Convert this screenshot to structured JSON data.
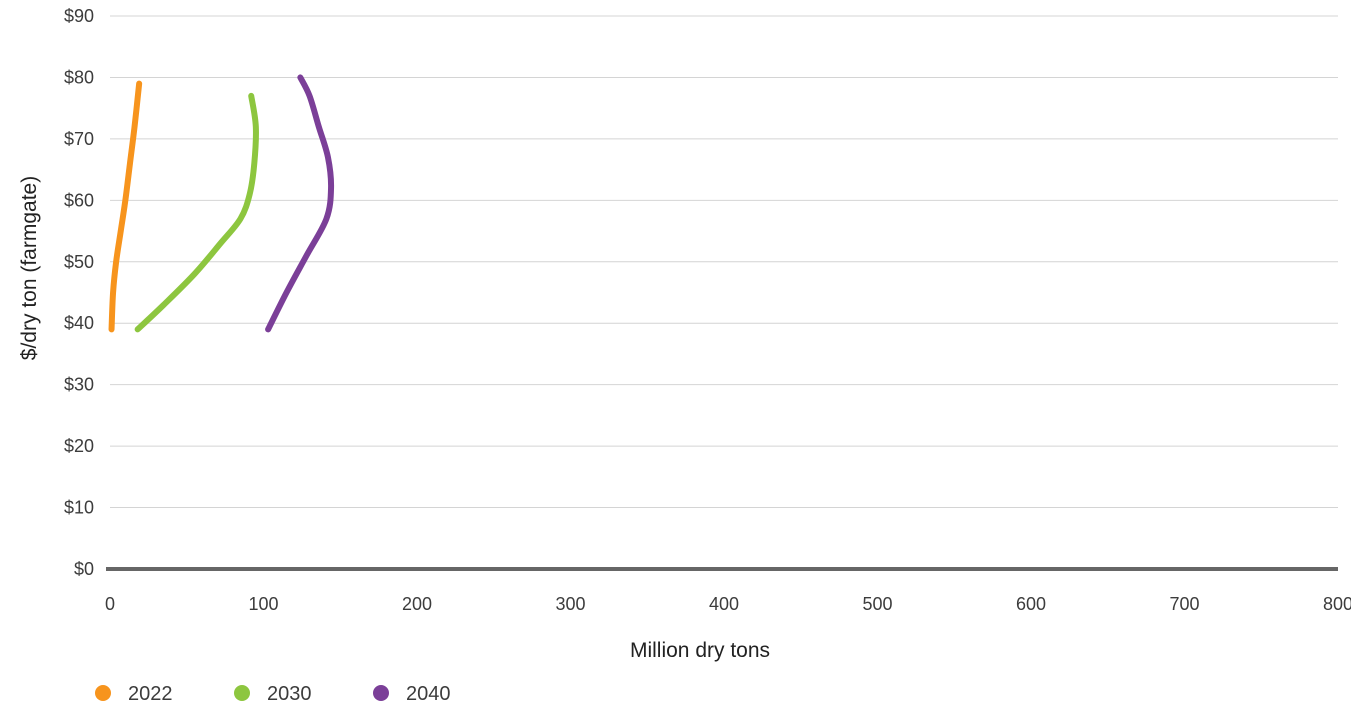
{
  "chart_data": {
    "type": "line",
    "title": "",
    "xlabel": "Million dry tons",
    "ylabel": "$/dry ton (farmgate)",
    "xlim": [
      0,
      800
    ],
    "ylim": [
      0,
      90
    ],
    "x_ticks": [
      "0",
      "100",
      "200",
      "300",
      "400",
      "500",
      "600",
      "700",
      "800"
    ],
    "y_ticks": [
      "$0",
      "$10",
      "$20",
      "$30",
      "$40",
      "$50",
      "$60",
      "$70",
      "$80",
      "$90"
    ],
    "grid": true,
    "legend_position": "bottom-left",
    "series": [
      {
        "name": "2022",
        "color": "#f7941d",
        "points": [
          [
            1,
            39
          ],
          [
            2,
            45
          ],
          [
            4,
            50
          ],
          [
            7,
            55
          ],
          [
            10,
            60
          ],
          [
            13,
            66
          ],
          [
            16,
            72
          ],
          [
            19,
            79
          ]
        ]
      },
      {
        "name": "2030",
        "color": "#8dc63f",
        "points": [
          [
            18,
            39
          ],
          [
            35,
            43
          ],
          [
            55,
            48
          ],
          [
            72,
            53
          ],
          [
            85,
            57
          ],
          [
            91,
            61
          ],
          [
            94,
            66
          ],
          [
            95,
            72
          ],
          [
            92,
            77
          ]
        ]
      },
      {
        "name": "2040",
        "color": "#7b3f98",
        "points": [
          [
            103,
            39
          ],
          [
            115,
            45
          ],
          [
            128,
            51
          ],
          [
            141,
            57
          ],
          [
            144,
            62
          ],
          [
            142,
            67
          ],
          [
            136,
            72
          ],
          [
            130,
            77
          ],
          [
            124,
            80
          ]
        ]
      }
    ]
  }
}
